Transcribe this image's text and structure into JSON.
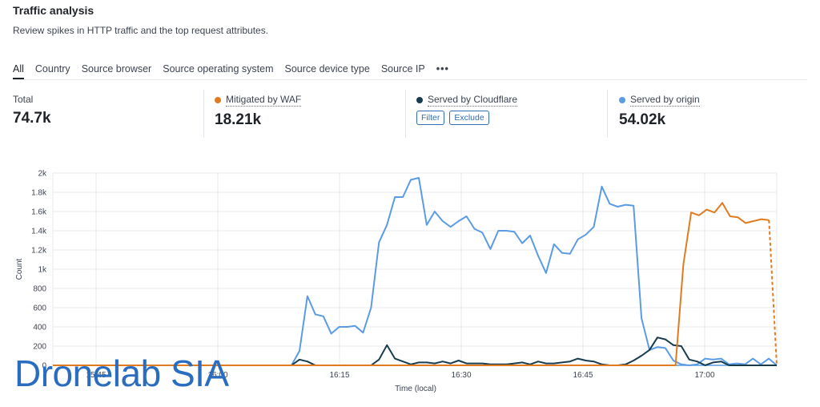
{
  "header": {
    "title": "Traffic analysis",
    "subtitle": "Review spikes in HTTP traffic and the top request attributes."
  },
  "tabs": [
    {
      "label": "All",
      "active": true
    },
    {
      "label": "Country"
    },
    {
      "label": "Source browser"
    },
    {
      "label": "Source operating system"
    },
    {
      "label": "Source device type"
    },
    {
      "label": "Source IP"
    }
  ],
  "more_label": "•••",
  "stats": {
    "total": {
      "label": "Total",
      "value": "74.7k"
    },
    "waf": {
      "label": "Mitigated by WAF",
      "value": "18.21k",
      "color": "#e07b1f"
    },
    "cloudflare": {
      "label": "Served by Cloudflare",
      "color": "#173b4f",
      "filter_label": "Filter",
      "exclude_label": "Exclude"
    },
    "origin": {
      "label": "Served by origin",
      "value": "54.02k",
      "color": "#5b9be6"
    }
  },
  "watermark": "Dronelab SIA",
  "chart_data": {
    "type": "line",
    "xlabel": "Time (local)",
    "ylabel": "Count",
    "ylim": [
      0,
      2000
    ],
    "y_ticks": [
      0,
      200,
      400,
      600,
      800,
      1000,
      1200,
      1400,
      1600,
      1800,
      2000
    ],
    "y_tick_labels": [
      "0",
      "200",
      "400",
      "600",
      "800",
      "1k",
      "1.2k",
      "1.4k",
      "1.6k",
      "1.8k",
      "2k"
    ],
    "x_ticks": [
      "15:45",
      "16:00",
      "16:15",
      "16:30",
      "16:45",
      "17:00"
    ],
    "grid": true,
    "series": [
      {
        "name": "Served by origin",
        "color": "#5b9be6",
        "values": [
          0,
          0,
          0,
          0,
          0,
          0,
          0,
          0,
          0,
          0,
          0,
          0,
          0,
          0,
          0,
          0,
          0,
          0,
          0,
          0,
          0,
          0,
          0,
          0,
          0,
          0,
          0,
          0,
          0,
          0,
          0,
          150,
          720,
          530,
          510,
          330,
          400,
          400,
          410,
          340,
          600,
          1280,
          1460,
          1750,
          1750,
          1930,
          1950,
          1460,
          1600,
          1500,
          1440,
          1500,
          1550,
          1420,
          1380,
          1210,
          1400,
          1400,
          1390,
          1270,
          1350,
          1140,
          960,
          1260,
          1170,
          1160,
          1310,
          1360,
          1440,
          1860,
          1680,
          1650,
          1670,
          1660,
          490,
          160,
          190,
          180,
          50,
          10,
          0,
          10,
          70,
          60,
          70,
          10,
          20,
          10,
          70,
          10,
          70,
          0
        ],
        "dashed_last": false
      },
      {
        "name": "Served by Cloudflare",
        "color": "#173b4f",
        "values": [
          0,
          0,
          0,
          0,
          0,
          0,
          0,
          0,
          0,
          0,
          0,
          0,
          0,
          0,
          0,
          0,
          0,
          0,
          0,
          0,
          0,
          0,
          0,
          0,
          0,
          0,
          0,
          0,
          0,
          0,
          0,
          60,
          40,
          0,
          0,
          0,
          0,
          0,
          0,
          0,
          0,
          60,
          210,
          70,
          40,
          10,
          30,
          30,
          20,
          40,
          20,
          50,
          20,
          20,
          20,
          10,
          10,
          10,
          20,
          30,
          10,
          40,
          20,
          20,
          30,
          40,
          70,
          50,
          40,
          10,
          0,
          0,
          10,
          50,
          100,
          160,
          290,
          270,
          210,
          200,
          60,
          40,
          0,
          30,
          40,
          0,
          0,
          0,
          0,
          0,
          0,
          0
        ],
        "dashed_last": false
      },
      {
        "name": "Mitigated by WAF",
        "color": "#e07b1f",
        "values": [
          0,
          0,
          0,
          0,
          0,
          0,
          0,
          0,
          0,
          0,
          0,
          0,
          0,
          0,
          0,
          0,
          0,
          0,
          0,
          0,
          0,
          0,
          0,
          0,
          0,
          0,
          0,
          0,
          0,
          0,
          0,
          0,
          0,
          0,
          0,
          0,
          0,
          0,
          0,
          0,
          0,
          0,
          0,
          0,
          0,
          0,
          0,
          0,
          0,
          0,
          0,
          0,
          0,
          0,
          0,
          0,
          0,
          0,
          0,
          0,
          0,
          0,
          0,
          0,
          0,
          0,
          0,
          0,
          0,
          0,
          0,
          0,
          0,
          0,
          0,
          0,
          0,
          0,
          0,
          0,
          0,
          1050,
          1590,
          1560,
          1620,
          1590,
          1690,
          1550,
          1540,
          1480,
          1500,
          1520,
          1510,
          0
        ],
        "dashed_last": true
      }
    ]
  }
}
